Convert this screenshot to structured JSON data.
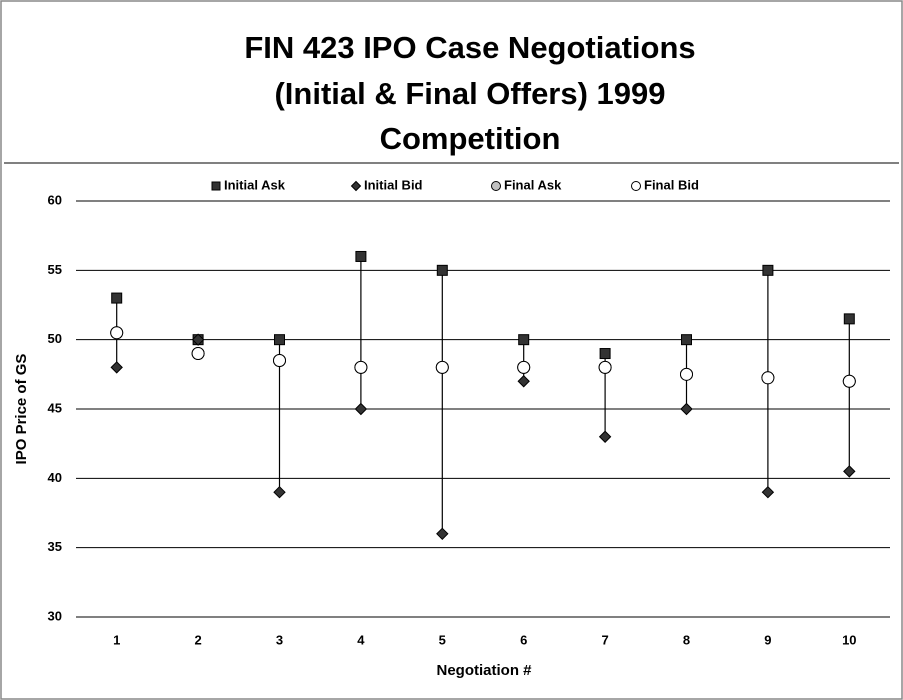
{
  "chart_data": {
    "type": "highlow",
    "title": [
      "FIN 423 IPO Case Negotiations",
      "(Initial & Final Offers) 1999",
      "Competition"
    ],
    "x_label": "Negotiation #",
    "y_label": "IPO Price of GS",
    "categories": [
      "1",
      "2",
      "3",
      "4",
      "5",
      "6",
      "7",
      "8",
      "9",
      "10"
    ],
    "series": [
      {
        "name": "Initial Ask",
        "color": "#333333",
        "marker": "square",
        "values": [
          53,
          50,
          50,
          56,
          55,
          50,
          49,
          50,
          55,
          51.5
        ]
      },
      {
        "name": "Initial Bid",
        "color": "#333333",
        "marker": "diamond",
        "values": [
          48,
          50,
          39,
          45,
          36,
          47,
          43,
          45,
          39,
          40.5
        ]
      },
      {
        "name": "Final Ask",
        "color": "#c0c0c0",
        "marker": "circle",
        "values": [
          50.5,
          49,
          48.5,
          48,
          48,
          48,
          48,
          47.5,
          47.25,
          47
        ]
      },
      {
        "name": "Final Bid",
        "color": "#ffffff",
        "marker": "circle",
        "values": [
          50.5,
          49,
          48.5,
          48,
          48,
          48,
          48,
          47.5,
          47.25,
          47
        ]
      }
    ],
    "ylim": [
      30,
      60
    ],
    "yticks": [
      30,
      35,
      40,
      45,
      50,
      55,
      60
    ],
    "grid": true,
    "legend": "top"
  }
}
